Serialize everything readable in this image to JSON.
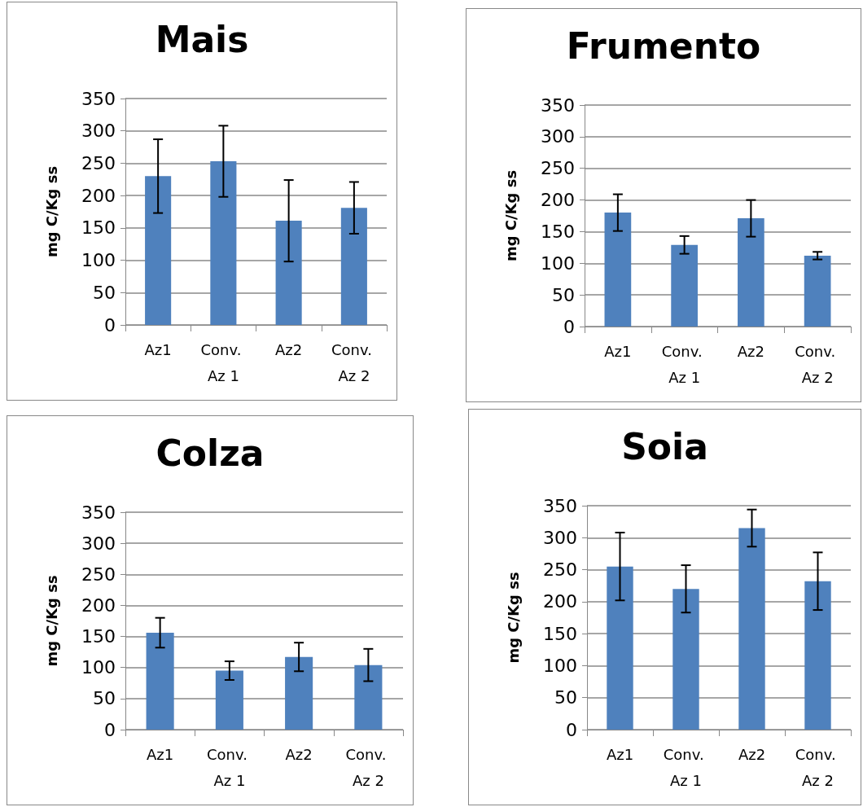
{
  "chart_data": [
    {
      "type": "bar",
      "title": "Mais",
      "ylabel": "mg C/Kg ss",
      "categories": [
        "Az1",
        "Conv. Az 1",
        "Az2",
        "Conv. Az 2"
      ],
      "values": [
        230,
        253,
        161,
        181
      ],
      "errors": [
        57,
        55,
        63,
        40
      ],
      "color": "#4f81bd",
      "ylim": [
        0,
        350
      ],
      "yticks": [
        0,
        50,
        100,
        150,
        200,
        250,
        300,
        350
      ],
      "grid": "y"
    },
    {
      "type": "bar",
      "title": "Frumento",
      "ylabel": "mg C/Kg ss",
      "categories": [
        "Az1",
        "Conv. Az 1",
        "Az2",
        "Conv. Az 2"
      ],
      "values": [
        180,
        129,
        171,
        112
      ],
      "errors": [
        29,
        14,
        29,
        6
      ],
      "color": "#4f81bd",
      "ylim": [
        0,
        350
      ],
      "yticks": [
        0,
        50,
        100,
        150,
        200,
        250,
        300,
        350
      ],
      "grid": "y"
    },
    {
      "type": "bar",
      "title": "Colza",
      "ylabel": "mg C/Kg ss",
      "categories": [
        "Az1",
        "Conv. Az 1",
        "Az2",
        "Conv. Az 2"
      ],
      "values": [
        156,
        95,
        117,
        104
      ],
      "errors": [
        24,
        15,
        23,
        26
      ],
      "color": "#4f81bd",
      "ylim": [
        0,
        350
      ],
      "yticks": [
        0,
        50,
        100,
        150,
        200,
        250,
        300,
        350
      ],
      "grid": "y"
    },
    {
      "type": "bar",
      "title": "Soia",
      "ylabel": "mg C/Kg ss",
      "categories": [
        "Az1",
        "Conv. Az 1",
        "Az2",
        "Conv. Az 2"
      ],
      "values": [
        255,
        220,
        315,
        232
      ],
      "errors": [
        53,
        37,
        29,
        45
      ],
      "color": "#4f81bd",
      "ylim": [
        0,
        350
      ],
      "yticks": [
        0,
        50,
        100,
        150,
        200,
        250,
        300,
        350
      ],
      "grid": "y"
    }
  ]
}
